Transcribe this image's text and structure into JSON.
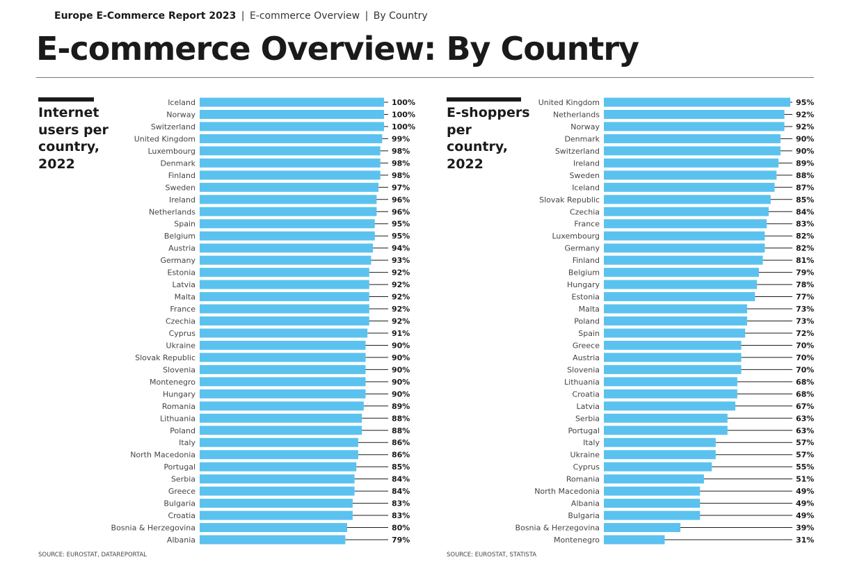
{
  "header": {
    "report": "Europe E-Commerce Report 2023",
    "sep1": "|",
    "section": "E-commerce Overview",
    "sep2": "|",
    "sub": "By Country"
  },
  "page_title": "E-commerce Overview: By Country",
  "colors": {
    "bar": "#5bc2ef",
    "text": "#1a1a1a",
    "leader": "#1a1a1a"
  },
  "chart_data": [
    {
      "type": "bar",
      "orientation": "horizontal",
      "title": "Internet users per country, 2022",
      "source": "SOURCE: EUROSTAT, DATAREPORTAL",
      "unit": "%",
      "xlim": [
        0,
        100
      ],
      "categories": [
        "Iceland",
        "Norway",
        "Switzerland",
        "United Kingdom",
        "Luxembourg",
        "Denmark",
        "Finland",
        "Sweden",
        "Ireland",
        "Netherlands",
        "Spain",
        "Belgium",
        "Austria",
        "Germany",
        "Estonia",
        "Latvia",
        "Malta",
        "France",
        "Czechia",
        "Cyprus",
        "Ukraine",
        "Slovak Republic",
        "Slovenia",
        "Montenegro",
        "Hungary",
        "Romania",
        "Lithuania",
        "Poland",
        "Italy",
        "North Macedonia",
        "Portugal",
        "Serbia",
        "Greece",
        "Bulgaria",
        "Croatia",
        "Bosnia & Herzegovina",
        "Albania"
      ],
      "values": [
        100,
        100,
        100,
        99,
        98,
        98,
        98,
        97,
        96,
        96,
        95,
        95,
        94,
        93,
        92,
        92,
        92,
        92,
        92,
        91,
        90,
        90,
        90,
        90,
        90,
        89,
        88,
        88,
        86,
        86,
        85,
        84,
        84,
        83,
        83,
        80,
        79
      ],
      "value_labels": [
        "100%",
        "100%",
        "100%",
        "99%",
        "98%",
        "98%",
        "98%",
        "97%",
        "96%",
        "96%",
        "95%",
        "95%",
        "94%",
        "93%",
        "92%",
        "92%",
        "92%",
        "92%",
        "92%",
        "91%",
        "90%",
        "90%",
        "90%",
        "90%",
        "90%",
        "89%",
        "88%",
        "88%",
        "86%",
        "86%",
        "85%",
        "84%",
        "84%",
        "83%",
        "83%",
        "80%",
        "79%"
      ]
    },
    {
      "type": "bar",
      "orientation": "horizontal",
      "title": "E-shoppers per country, 2022",
      "source": "SOURCE: EUROSTAT, STATISTA",
      "unit": "%",
      "xlim": [
        0,
        95
      ],
      "categories": [
        "United Kingdom",
        "Netherlands",
        "Norway",
        "Denmark",
        "Switzerland",
        "Ireland",
        "Sweden",
        "Iceland",
        "Slovak Republic",
        "Czechia",
        "France",
        "Luxembourg",
        "Germany",
        "Finland",
        "Belgium",
        "Hungary",
        "Estonia",
        "Malta",
        "Poland",
        "Spain",
        "Greece",
        "Austria",
        "Slovenia",
        "Lithuania",
        "Croatia",
        "Latvia",
        "Serbia",
        "Portugal",
        "Italy",
        "Ukraine",
        "Cyprus",
        "Romania",
        "North Macedonia",
        "Albania",
        "Bulgaria",
        "Bosnia & Herzegovina",
        "Montenegro"
      ],
      "values": [
        95,
        92,
        92,
        90,
        90,
        89,
        88,
        87,
        85,
        84,
        83,
        82,
        82,
        81,
        79,
        78,
        77,
        73,
        73,
        72,
        70,
        70,
        70,
        68,
        68,
        67,
        63,
        63,
        57,
        57,
        55,
        51,
        49,
        49,
        49,
        39,
        31
      ],
      "value_labels": [
        "95%",
        "92%",
        "92%",
        "90%",
        "90%",
        "89%",
        "88%",
        "87%",
        "85%",
        "84%",
        "83%",
        "82%",
        "82%",
        "81%",
        "79%",
        "78%",
        "77%",
        "73%",
        "73%",
        "72%",
        "70%",
        "70%",
        "70%",
        "68%",
        "68%",
        "67%",
        "63%",
        "63%",
        "57%",
        "57%",
        "55%",
        "51%",
        "49%",
        "49%",
        "49%",
        "39%",
        "31%"
      ]
    }
  ]
}
